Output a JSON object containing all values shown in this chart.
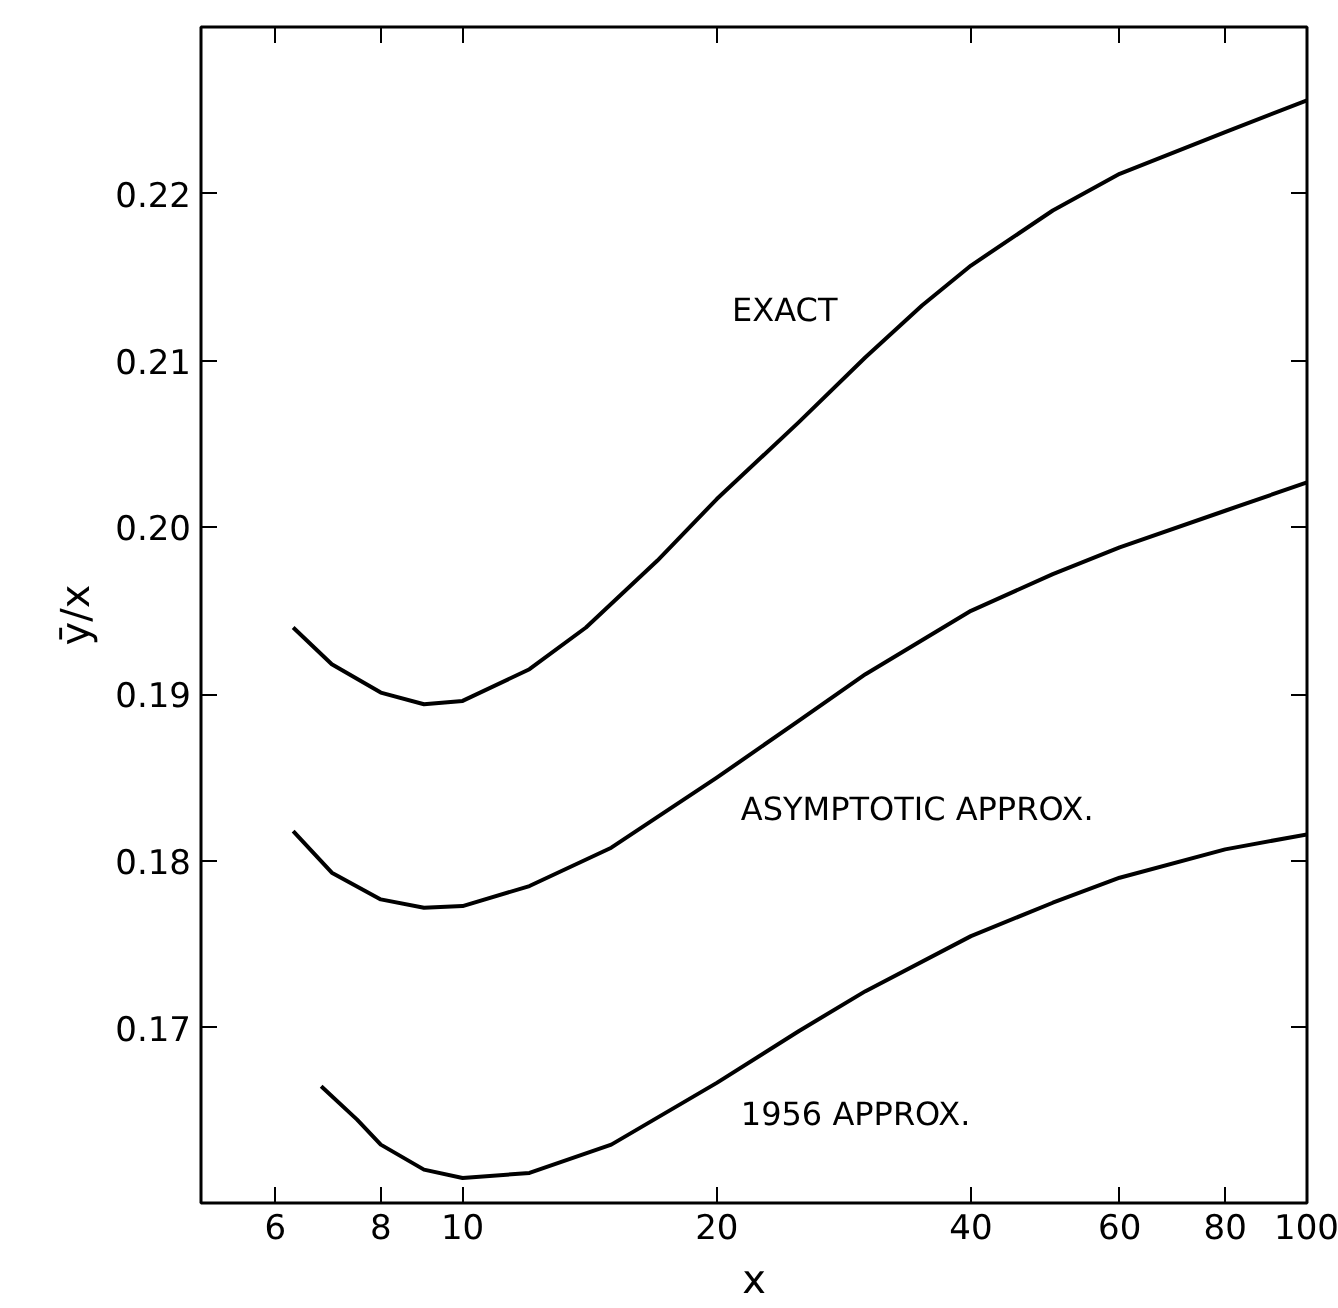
{
  "chart_data": {
    "type": "line",
    "xlabel": "x",
    "ylabel": "ȳ/x",
    "log": "x",
    "xlim": [
      4.9,
      100
    ],
    "ylim": [
      0.1595,
      0.23
    ],
    "xticks": [
      6,
      8,
      10,
      20,
      40,
      60,
      80,
      100
    ],
    "yticks": [
      0.17,
      0.18,
      0.19,
      {
        "value": 0.2,
        "label": "0.20"
      },
      0.21,
      0.22
    ],
    "grid": false,
    "marker": "none",
    "line_style": "solid",
    "series": [
      {
        "name": "EXACT",
        "color": "#000000",
        "x": [
          6.3,
          7,
          8,
          9,
          10,
          12,
          14,
          17,
          20,
          25,
          30,
          35,
          40,
          50,
          60,
          80,
          100
        ],
        "values": [
          0.194,
          0.1918,
          0.1901,
          0.1894,
          0.1896,
          0.1915,
          0.194,
          0.198,
          0.2017,
          0.2063,
          0.2102,
          0.2133,
          0.2157,
          0.219,
          0.2212,
          0.2237,
          0.2256
        ]
      },
      {
        "name": "ASYMPTOTIC APPROX.",
        "color": "#000000",
        "x": [
          6.3,
          7,
          8,
          9,
          10,
          12,
          15,
          20,
          25,
          30,
          40,
          50,
          60,
          80,
          100
        ],
        "values": [
          0.1818,
          0.1793,
          0.1777,
          0.1772,
          0.1773,
          0.1785,
          0.1808,
          0.185,
          0.1884,
          0.1912,
          0.195,
          0.1972,
          0.1988,
          0.201,
          0.2027
        ]
      },
      {
        "name": "1956 APPROX.",
        "color": "#000000",
        "x": [
          6.8,
          7.5,
          8,
          9,
          10,
          12,
          15,
          20,
          25,
          30,
          40,
          50,
          60,
          80,
          100
        ],
        "values": [
          0.1665,
          0.1645,
          0.163,
          0.1615,
          0.161,
          0.1613,
          0.163,
          0.1667,
          0.1698,
          0.1722,
          0.1755,
          0.1775,
          0.179,
          0.1807,
          0.1816
        ]
      }
    ]
  }
}
